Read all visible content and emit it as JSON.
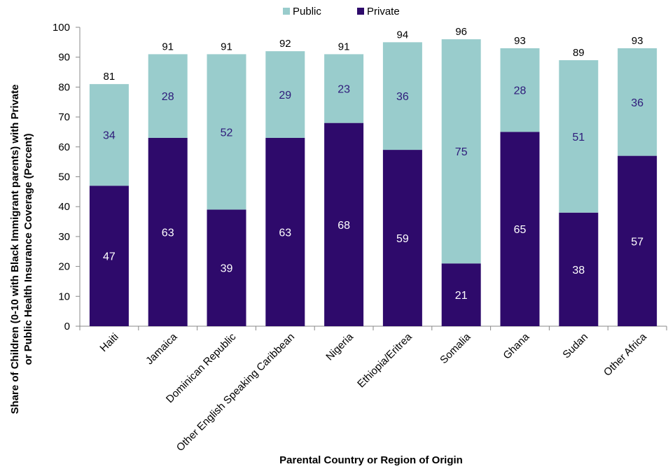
{
  "chart_data": {
    "type": "bar",
    "stacked": true,
    "title": "",
    "xlabel": "Parental Country or Region of Origin",
    "ylabel_lines": [
      "Share of Children (0-10 with Black Immigrant parents) with Private",
      "or Public Health Insurance Coverage (Percent)"
    ],
    "ylim": [
      0,
      100
    ],
    "yticks": [
      0,
      10,
      20,
      30,
      40,
      50,
      60,
      70,
      80,
      90,
      100
    ],
    "grid": false,
    "legend_position": "top-center",
    "categories": [
      "Haiti",
      "Jamaica",
      "Dominican Republic",
      "Other English Speaking Caribbean",
      "Nigeria",
      "Ethiopia/Eritrea",
      "Somalia",
      "Ghana",
      "Sudan",
      "Other Africa"
    ],
    "series": [
      {
        "name": "Private",
        "color": "#2e0a6b",
        "label_color": "#ffffff",
        "values": [
          47,
          63,
          39,
          63,
          68,
          59,
          21,
          65,
          38,
          57
        ]
      },
      {
        "name": "Public",
        "color": "#99cccc",
        "label_color": "#2e1a7a",
        "values": [
          34,
          28,
          52,
          29,
          23,
          36,
          75,
          28,
          51,
          36
        ]
      }
    ],
    "legend_order": [
      "Public",
      "Private"
    ],
    "totals": [
      81,
      91,
      91,
      92,
      91,
      94,
      96,
      93,
      89,
      93
    ]
  }
}
